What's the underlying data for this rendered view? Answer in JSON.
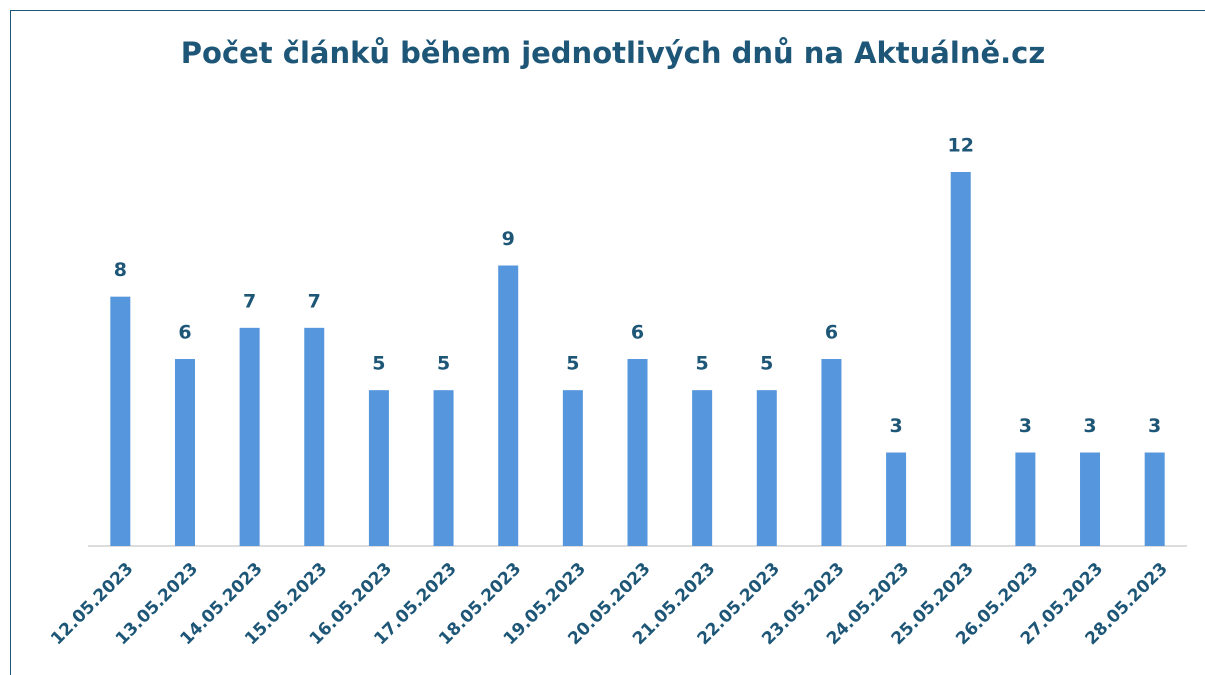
{
  "chart_data": {
    "type": "bar",
    "title": "Počet článků během jednotlivých dnů na Aktuálně.cz",
    "categories": [
      "12.05.2023",
      "13.05.2023",
      "14.05.2023",
      "15.05.2023",
      "16.05.2023",
      "17.05.2023",
      "18.05.2023",
      "19.05.2023",
      "20.05.2023",
      "21.05.2023",
      "22.05.2023",
      "23.05.2023",
      "24.05.2023",
      "25.05.2023",
      "26.05.2023",
      "27.05.2023",
      "28.05.2023"
    ],
    "values": [
      8,
      6,
      7,
      7,
      5,
      5,
      9,
      5,
      6,
      5,
      5,
      6,
      3,
      12,
      3,
      3,
      3
    ],
    "color": "#5596dc",
    "ylim": [
      0,
      12
    ]
  }
}
